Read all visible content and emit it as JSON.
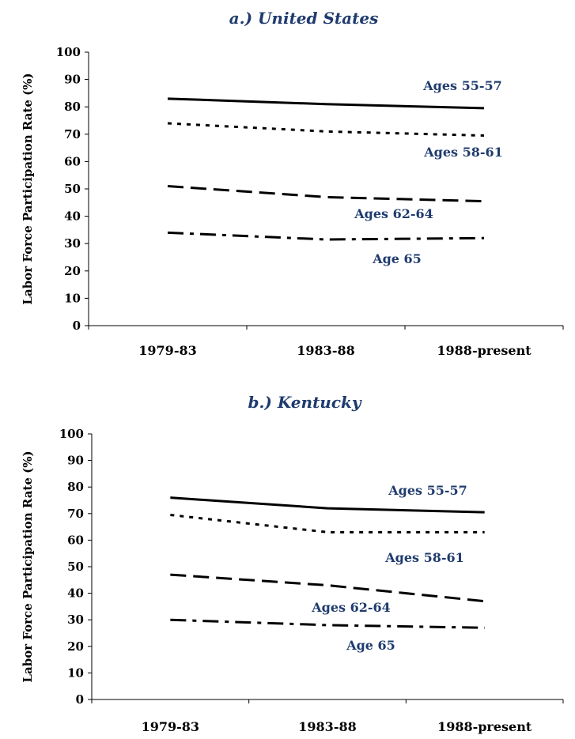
{
  "chart_data": [
    {
      "type": "line",
      "title": "a.) United States",
      "ylabel": "Labor Force Participation Rate (%)",
      "xlabel": "",
      "categories": [
        "1979-83",
        "1983-88",
        "1988-present"
      ],
      "ylim": [
        0,
        100
      ],
      "yticks": [
        0,
        10,
        20,
        30,
        40,
        50,
        60,
        70,
        80,
        90,
        100
      ],
      "grid": false,
      "series": [
        {
          "name": "Ages 55-57",
          "style": "solid",
          "values": [
            83,
            81,
            79.5
          ]
        },
        {
          "name": "Ages 58-61",
          "style": "dotted",
          "values": [
            74,
            71,
            69.5
          ]
        },
        {
          "name": "Ages 62-64",
          "style": "dashed",
          "values": [
            51,
            47,
            45.5
          ]
        },
        {
          "name": "Age 65",
          "style": "dash-dot",
          "values": [
            34,
            31.5,
            32
          ]
        }
      ],
      "series_color": "#000000",
      "label_color": "#1f3b6e"
    },
    {
      "type": "line",
      "title": "b.) Kentucky",
      "ylabel": "Labor Force Participation Rate (%)",
      "xlabel": "",
      "categories": [
        "1979-83",
        "1983-88",
        "1988-present"
      ],
      "ylim": [
        0,
        100
      ],
      "yticks": [
        0,
        10,
        20,
        30,
        40,
        50,
        60,
        70,
        80,
        90,
        100
      ],
      "grid": false,
      "series": [
        {
          "name": "Ages 55-57",
          "style": "solid",
          "values": [
            76,
            72,
            70.5
          ]
        },
        {
          "name": "Ages 58-61",
          "style": "dotted",
          "values": [
            69.5,
            63,
            63
          ]
        },
        {
          "name": "Ages 62-64",
          "style": "dashed",
          "values": [
            47,
            43,
            37
          ]
        },
        {
          "name": "Age 65",
          "style": "dash-dot",
          "values": [
            30,
            28,
            27
          ]
        }
      ],
      "series_color": "#000000",
      "label_color": "#1f3b6e"
    }
  ]
}
